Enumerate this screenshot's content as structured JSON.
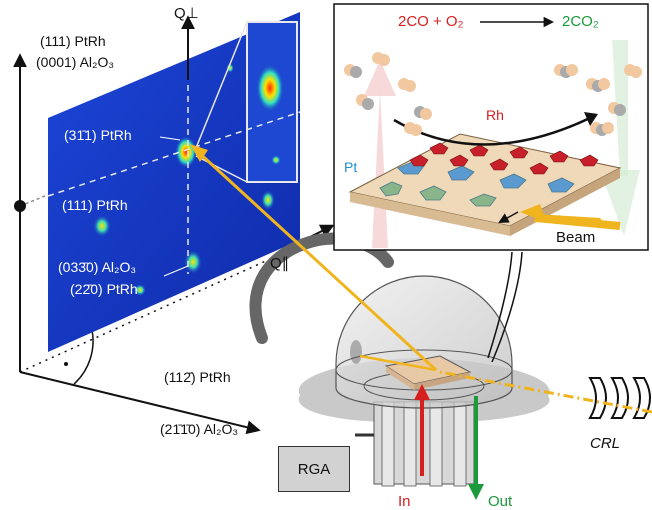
{
  "axes": {
    "q_perp": "Q⊥",
    "q_par": "Q∥"
  },
  "labels": {
    "top_left_1": "(111) PtRh",
    "top_left_2": "(0001) Al₂O₃",
    "detector_311": "(31̄1) PtRh",
    "detector_111": "(111) PtRh",
    "detector_0330": "(033̄0) Al₂O₃",
    "detector_220": "(22̄0) PtRh",
    "bottom_1": "(112̄) PtRh",
    "bottom_2": "(21̄1̄0) Al₂O₃"
  },
  "inset": {
    "reaction_left": "2CO + O₂",
    "reaction_right": "2CO₂",
    "rh": "Rh",
    "pt": "Pt",
    "beam": "Beam"
  },
  "apparatus": {
    "rga": "RGA",
    "crl": "CRL",
    "in": "In",
    "out": "Out"
  },
  "colors": {
    "beam": "#f0b41e",
    "red_label": "#d62020",
    "green_label": "#1a9a3a",
    "pt_blue": "#1e90d0",
    "detector_bg": "#1838c8"
  }
}
